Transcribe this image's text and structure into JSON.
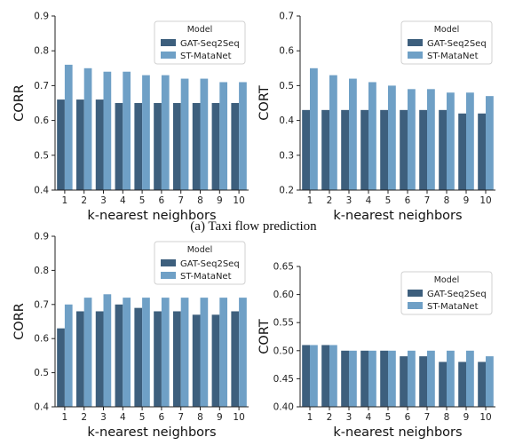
{
  "caption": "(a) Taxi flow prediction",
  "colors": {
    "series1": "#3d5f7d",
    "series2": "#6fa0c6"
  },
  "chart_data": [
    {
      "type": "bar",
      "categories": [
        "1",
        "2",
        "3",
        "4",
        "5",
        "6",
        "7",
        "8",
        "9",
        "10"
      ],
      "xlabel": "k-nearest neighbors",
      "ylabel": "CORR",
      "ylim": [
        0.4,
        0.9
      ],
      "yticks": [
        "0.4",
        "0.5",
        "0.6",
        "0.7",
        "0.8",
        "0.9"
      ],
      "legend": {
        "title": "Model",
        "position": "top-right"
      },
      "series": [
        {
          "name": "GAT-Seq2Seq",
          "values": [
            0.66,
            0.66,
            0.66,
            0.65,
            0.65,
            0.65,
            0.65,
            0.65,
            0.65,
            0.65
          ]
        },
        {
          "name": "ST-MataNet",
          "values": [
            0.76,
            0.75,
            0.74,
            0.74,
            0.73,
            0.73,
            0.72,
            0.72,
            0.71,
            0.71
          ]
        }
      ]
    },
    {
      "type": "bar",
      "categories": [
        "1",
        "2",
        "3",
        "4",
        "5",
        "6",
        "7",
        "8",
        "9",
        "10"
      ],
      "xlabel": "k-nearest neighbors",
      "ylabel": "CORT",
      "ylim": [
        0.2,
        0.7
      ],
      "yticks": [
        "0.2",
        "0.3",
        "0.4",
        "0.5",
        "0.6",
        "0.7"
      ],
      "legend": {
        "title": "Model",
        "position": "top-right"
      },
      "series": [
        {
          "name": "GAT-Seq2Seq",
          "values": [
            0.43,
            0.43,
            0.43,
            0.43,
            0.43,
            0.43,
            0.43,
            0.43,
            0.42,
            0.42
          ]
        },
        {
          "name": "ST-MataNet",
          "values": [
            0.55,
            0.53,
            0.52,
            0.51,
            0.5,
            0.49,
            0.49,
            0.48,
            0.48,
            0.47
          ]
        }
      ]
    },
    {
      "type": "bar",
      "categories": [
        "1",
        "2",
        "3",
        "4",
        "5",
        "6",
        "7",
        "8",
        "9",
        "10"
      ],
      "xlabel": "k-nearest neighbors",
      "ylabel": "CORR",
      "ylim": [
        0.4,
        0.9
      ],
      "yticks": [
        "0.4",
        "0.5",
        "0.6",
        "0.7",
        "0.8",
        "0.9"
      ],
      "legend": {
        "title": "Model",
        "position": "top-right"
      },
      "series": [
        {
          "name": "GAT-Seq2Seq",
          "values": [
            0.63,
            0.68,
            0.68,
            0.7,
            0.69,
            0.68,
            0.68,
            0.67,
            0.67,
            0.68
          ]
        },
        {
          "name": "ST-MataNet",
          "values": [
            0.7,
            0.72,
            0.73,
            0.72,
            0.72,
            0.72,
            0.72,
            0.72,
            0.72,
            0.72
          ]
        }
      ]
    },
    {
      "type": "bar",
      "categories": [
        "1",
        "2",
        "3",
        "4",
        "5",
        "6",
        "7",
        "8",
        "9",
        "10"
      ],
      "xlabel": "k-nearest neighbors",
      "ylabel": "CORT",
      "ylim": [
        0.4,
        0.65
      ],
      "yticks": [
        "0.40",
        "0.45",
        "0.50",
        "0.55",
        "0.60",
        "0.65"
      ],
      "legend": {
        "title": "Model",
        "position": "top-right"
      },
      "series": [
        {
          "name": "GAT-Seq2Seq",
          "values": [
            0.51,
            0.51,
            0.5,
            0.5,
            0.5,
            0.49,
            0.49,
            0.48,
            0.48,
            0.48
          ]
        },
        {
          "name": "ST-MataNet",
          "values": [
            0.51,
            0.51,
            0.5,
            0.5,
            0.5,
            0.5,
            0.5,
            0.5,
            0.5,
            0.49
          ]
        }
      ]
    }
  ]
}
